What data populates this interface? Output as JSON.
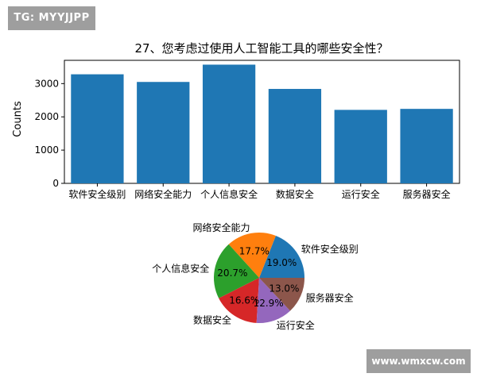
{
  "watermarks": {
    "top_left": "TG: MYYJJPP",
    "bottom_right": "www.wmxcw.com"
  },
  "chart_data": [
    {
      "type": "bar",
      "title": "27、您考虑过使用人工智能工具的哪些安全性？",
      "xlabel": "",
      "ylabel": "Counts",
      "categories": [
        "软件安全级别",
        "网络安全能力",
        "个人信息安全",
        "数据安全",
        "运行安全",
        "服务器安全"
      ],
      "values": [
        3280,
        3050,
        3570,
        2840,
        2210,
        2240
      ],
      "ylim": [
        0,
        3700
      ],
      "yticks": [
        0,
        1000,
        2000,
        3000
      ],
      "color": "#1f77b4",
      "grid": false
    },
    {
      "type": "pie",
      "labels": [
        "软件安全级别",
        "网络安全能力",
        "个人信息安全",
        "数据安全",
        "运行安全",
        "服务器安全"
      ],
      "values": [
        19.0,
        17.7,
        20.7,
        16.6,
        12.9,
        13.0
      ],
      "value_labels": [
        "19.0%",
        "17.7%",
        "20.7%",
        "16.6%",
        "12.9%",
        "13.0%"
      ],
      "colors": [
        "#1f77b4",
        "#ff7f0e",
        "#2ca02c",
        "#d62728",
        "#9467bd",
        "#8c564b"
      ]
    }
  ]
}
